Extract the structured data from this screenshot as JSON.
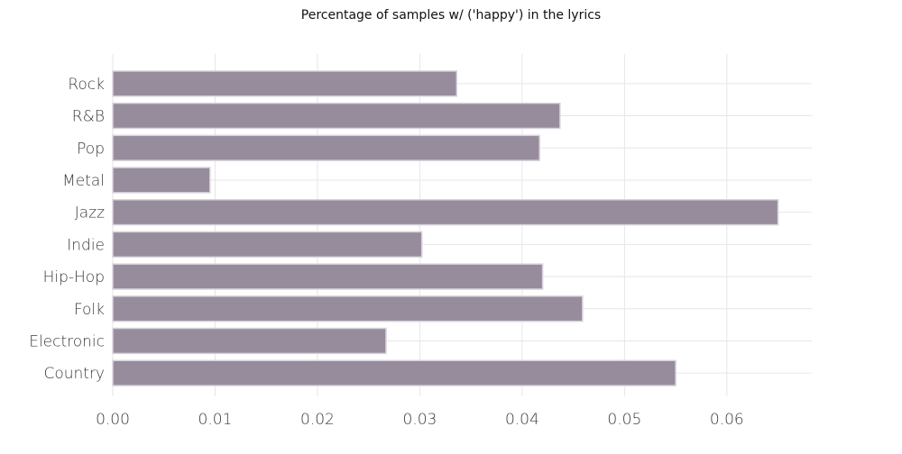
{
  "chart_data": {
    "type": "bar",
    "orientation": "horizontal",
    "title": "Percentage of samples w/ ('happy') in the lyrics",
    "xlabel": "",
    "ylabel": "",
    "categories": [
      "Rock",
      "R&B",
      "Pop",
      "Metal",
      "Jazz",
      "Indie",
      "Hip-Hop",
      "Folk",
      "Electronic",
      "Country"
    ],
    "values": [
      0.0336,
      0.0437,
      0.0417,
      0.0095,
      0.065,
      0.0302,
      0.042,
      0.0459,
      0.0267,
      0.055
    ],
    "xlim": [
      0,
      0.0683
    ],
    "xticks": [
      0.0,
      0.01,
      0.02,
      0.03,
      0.04,
      0.05,
      0.06
    ],
    "xtick_labels": [
      "0.00",
      "0.01",
      "0.02",
      "0.03",
      "0.04",
      "0.05",
      "0.06"
    ],
    "grid": true,
    "legend": "none",
    "bar_color": "#968c9b",
    "bar_edge_color": "#d8d2dc"
  }
}
